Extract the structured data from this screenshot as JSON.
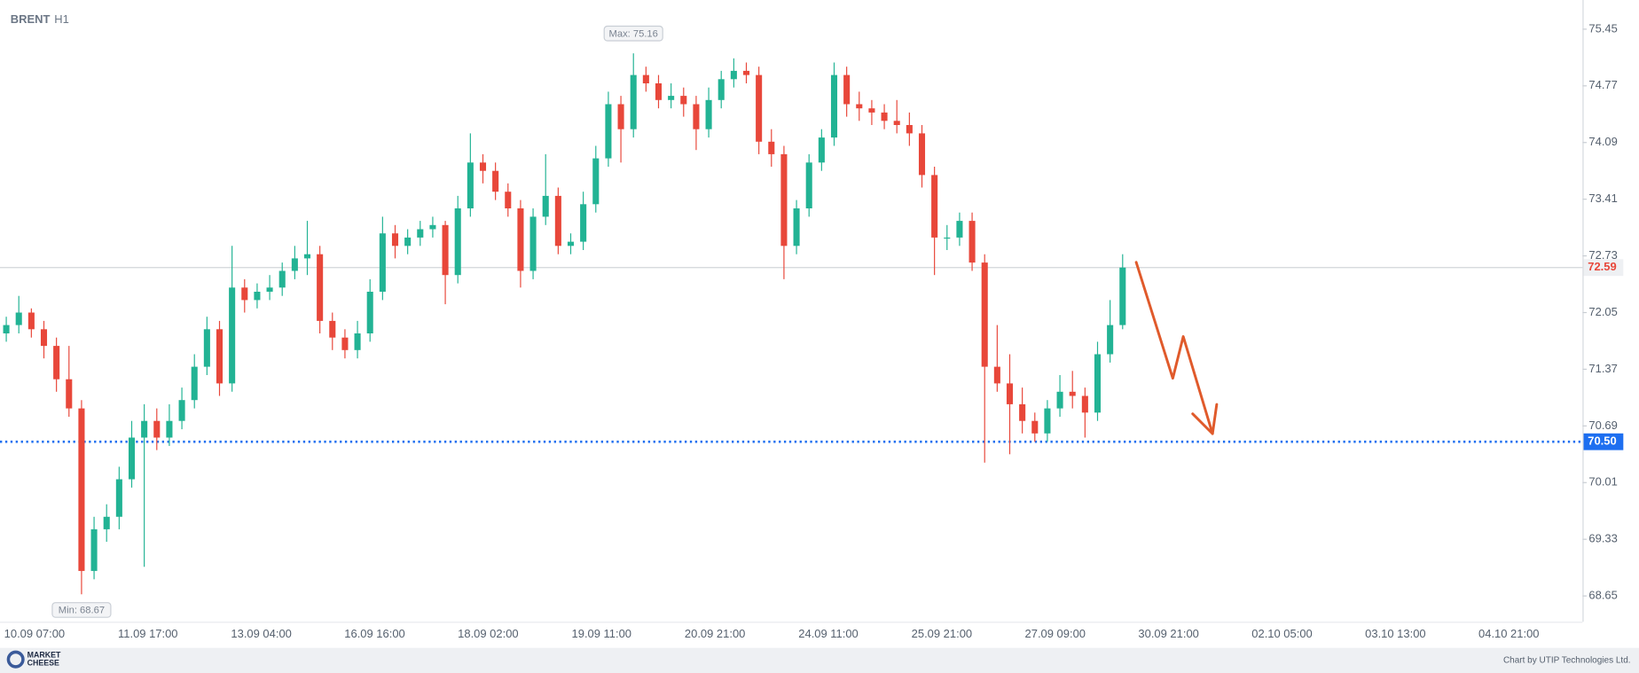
{
  "chart_data": {
    "type": "candlestick",
    "symbol": "BRENT",
    "timeframe": "H1",
    "x_labels": [
      "10.09 07:00",
      "11.09 17:00",
      "13.09 04:00",
      "16.09 16:00",
      "18.09 02:00",
      "19.09 11:00",
      "20.09 21:00",
      "24.09 11:00",
      "25.09 21:00",
      "27.09 09:00",
      "30.09 21:00",
      "02.10 05:00",
      "03.10 13:00",
      "04.10 21:00"
    ],
    "ohlc": [
      [
        71.8,
        72.0,
        71.7,
        71.9
      ],
      [
        71.9,
        72.25,
        71.8,
        72.05
      ],
      [
        72.05,
        72.1,
        71.75,
        71.85
      ],
      [
        71.85,
        71.95,
        71.5,
        71.65
      ],
      [
        71.65,
        71.75,
        71.1,
        71.25
      ],
      [
        71.25,
        71.65,
        70.8,
        70.9
      ],
      [
        70.9,
        71.0,
        68.67,
        68.95
      ],
      [
        68.95,
        69.6,
        68.85,
        69.45
      ],
      [
        69.45,
        69.75,
        69.3,
        69.6
      ],
      [
        69.6,
        70.2,
        69.45,
        70.05
      ],
      [
        70.05,
        70.75,
        69.95,
        70.55
      ],
      [
        70.55,
        70.95,
        69.0,
        70.75
      ],
      [
        70.75,
        70.9,
        70.4,
        70.55
      ],
      [
        70.55,
        70.95,
        70.45,
        70.75
      ],
      [
        70.75,
        71.15,
        70.65,
        71.0
      ],
      [
        71.0,
        71.55,
        70.9,
        71.4
      ],
      [
        71.4,
        72.0,
        71.3,
        71.85
      ],
      [
        71.85,
        71.95,
        71.05,
        71.2
      ],
      [
        71.2,
        72.85,
        71.1,
        72.35
      ],
      [
        72.35,
        72.45,
        72.05,
        72.2
      ],
      [
        72.2,
        72.4,
        72.1,
        72.3
      ],
      [
        72.3,
        72.5,
        72.2,
        72.35
      ],
      [
        72.35,
        72.65,
        72.25,
        72.55
      ],
      [
        72.55,
        72.85,
        72.45,
        72.7
      ],
      [
        72.7,
        73.15,
        72.5,
        72.75
      ],
      [
        72.75,
        72.85,
        71.8,
        71.95
      ],
      [
        71.95,
        72.05,
        71.6,
        71.75
      ],
      [
        71.75,
        71.85,
        71.5,
        71.6
      ],
      [
        71.6,
        71.95,
        71.5,
        71.8
      ],
      [
        71.8,
        72.45,
        71.7,
        72.3
      ],
      [
        72.3,
        73.2,
        72.2,
        73.0
      ],
      [
        73.0,
        73.1,
        72.7,
        72.85
      ],
      [
        72.85,
        73.05,
        72.75,
        72.95
      ],
      [
        72.95,
        73.15,
        72.85,
        73.05
      ],
      [
        73.05,
        73.2,
        72.95,
        73.1
      ],
      [
        73.1,
        73.15,
        72.15,
        72.5
      ],
      [
        72.5,
        73.45,
        72.4,
        73.3
      ],
      [
        73.3,
        74.2,
        73.2,
        73.85
      ],
      [
        73.85,
        73.95,
        73.6,
        73.75
      ],
      [
        73.75,
        73.85,
        73.4,
        73.5
      ],
      [
        73.5,
        73.6,
        73.2,
        73.3
      ],
      [
        73.3,
        73.4,
        72.35,
        72.55
      ],
      [
        72.55,
        73.3,
        72.45,
        73.2
      ],
      [
        73.2,
        73.95,
        73.1,
        73.45
      ],
      [
        73.45,
        73.55,
        72.75,
        72.85
      ],
      [
        72.85,
        73.0,
        72.75,
        72.9
      ],
      [
        72.9,
        73.5,
        72.8,
        73.35
      ],
      [
        73.35,
        74.05,
        73.25,
        73.9
      ],
      [
        73.9,
        74.7,
        73.8,
        74.55
      ],
      [
        74.55,
        74.65,
        73.85,
        74.25
      ],
      [
        74.25,
        75.16,
        74.15,
        74.9
      ],
      [
        74.9,
        75.0,
        74.7,
        74.8
      ],
      [
        74.8,
        74.9,
        74.5,
        74.6
      ],
      [
        74.6,
        74.8,
        74.5,
        74.65
      ],
      [
        74.65,
        74.75,
        74.4,
        74.55
      ],
      [
        74.55,
        74.65,
        74.0,
        74.25
      ],
      [
        74.25,
        74.75,
        74.15,
        74.6
      ],
      [
        74.6,
        74.95,
        74.5,
        74.85
      ],
      [
        74.85,
        75.1,
        74.75,
        74.95
      ],
      [
        74.95,
        75.05,
        74.8,
        74.9
      ],
      [
        74.9,
        75.0,
        73.95,
        74.1
      ],
      [
        74.1,
        74.25,
        73.8,
        73.95
      ],
      [
        73.95,
        74.05,
        72.45,
        72.85
      ],
      [
        72.85,
        73.4,
        72.75,
        73.3
      ],
      [
        73.3,
        73.95,
        73.2,
        73.85
      ],
      [
        73.85,
        74.25,
        73.75,
        74.15
      ],
      [
        74.15,
        75.05,
        74.05,
        74.9
      ],
      [
        74.9,
        75.0,
        74.4,
        74.55
      ],
      [
        74.55,
        74.7,
        74.35,
        74.5
      ],
      [
        74.5,
        74.6,
        74.3,
        74.45
      ],
      [
        74.45,
        74.55,
        74.25,
        74.35
      ],
      [
        74.35,
        74.6,
        74.2,
        74.3
      ],
      [
        74.3,
        74.45,
        74.05,
        74.2
      ],
      [
        74.2,
        74.3,
        73.55,
        73.7
      ],
      [
        73.7,
        73.8,
        72.5,
        72.95
      ],
      [
        72.95,
        73.1,
        72.8,
        72.95
      ],
      [
        72.95,
        73.25,
        72.85,
        73.15
      ],
      [
        73.15,
        73.25,
        72.55,
        72.65
      ],
      [
        72.65,
        72.75,
        70.25,
        71.4
      ],
      [
        71.4,
        71.9,
        71.1,
        71.2
      ],
      [
        71.2,
        71.55,
        70.35,
        70.95
      ],
      [
        70.95,
        71.15,
        70.6,
        70.75
      ],
      [
        70.75,
        70.85,
        70.5,
        70.6
      ],
      [
        70.6,
        71.0,
        70.5,
        70.9
      ],
      [
        70.9,
        71.3,
        70.8,
        71.1
      ],
      [
        71.1,
        71.35,
        70.9,
        71.05
      ],
      [
        71.05,
        71.15,
        70.55,
        70.85
      ],
      [
        70.85,
        71.7,
        70.75,
        71.55
      ],
      [
        71.55,
        72.2,
        71.45,
        71.9
      ],
      [
        71.9,
        72.75,
        71.85,
        72.59
      ]
    ],
    "up_color": "#22b394",
    "down_color": "#e8473a",
    "ylim": [
      68.34,
      75.8
    ],
    "yticks": [
      75.45,
      74.77,
      74.09,
      73.41,
      72.73,
      72.05,
      71.37,
      70.69,
      70.01,
      69.33,
      68.65
    ],
    "max_label": {
      "value": 75.16,
      "label": "Max: 75.16"
    },
    "min_label": {
      "value": 68.67,
      "label": "Min: 68.67"
    },
    "last_price": 72.59,
    "last_price_color": "#e8473a",
    "level": {
      "value": 70.5,
      "label": "70.50"
    },
    "level_color": "#1e6ff0"
  },
  "footer": {
    "logo_top": "MARKET",
    "logo_bottom": "CHEESE",
    "credit": "Chart by UTIP Technologies Ltd."
  }
}
